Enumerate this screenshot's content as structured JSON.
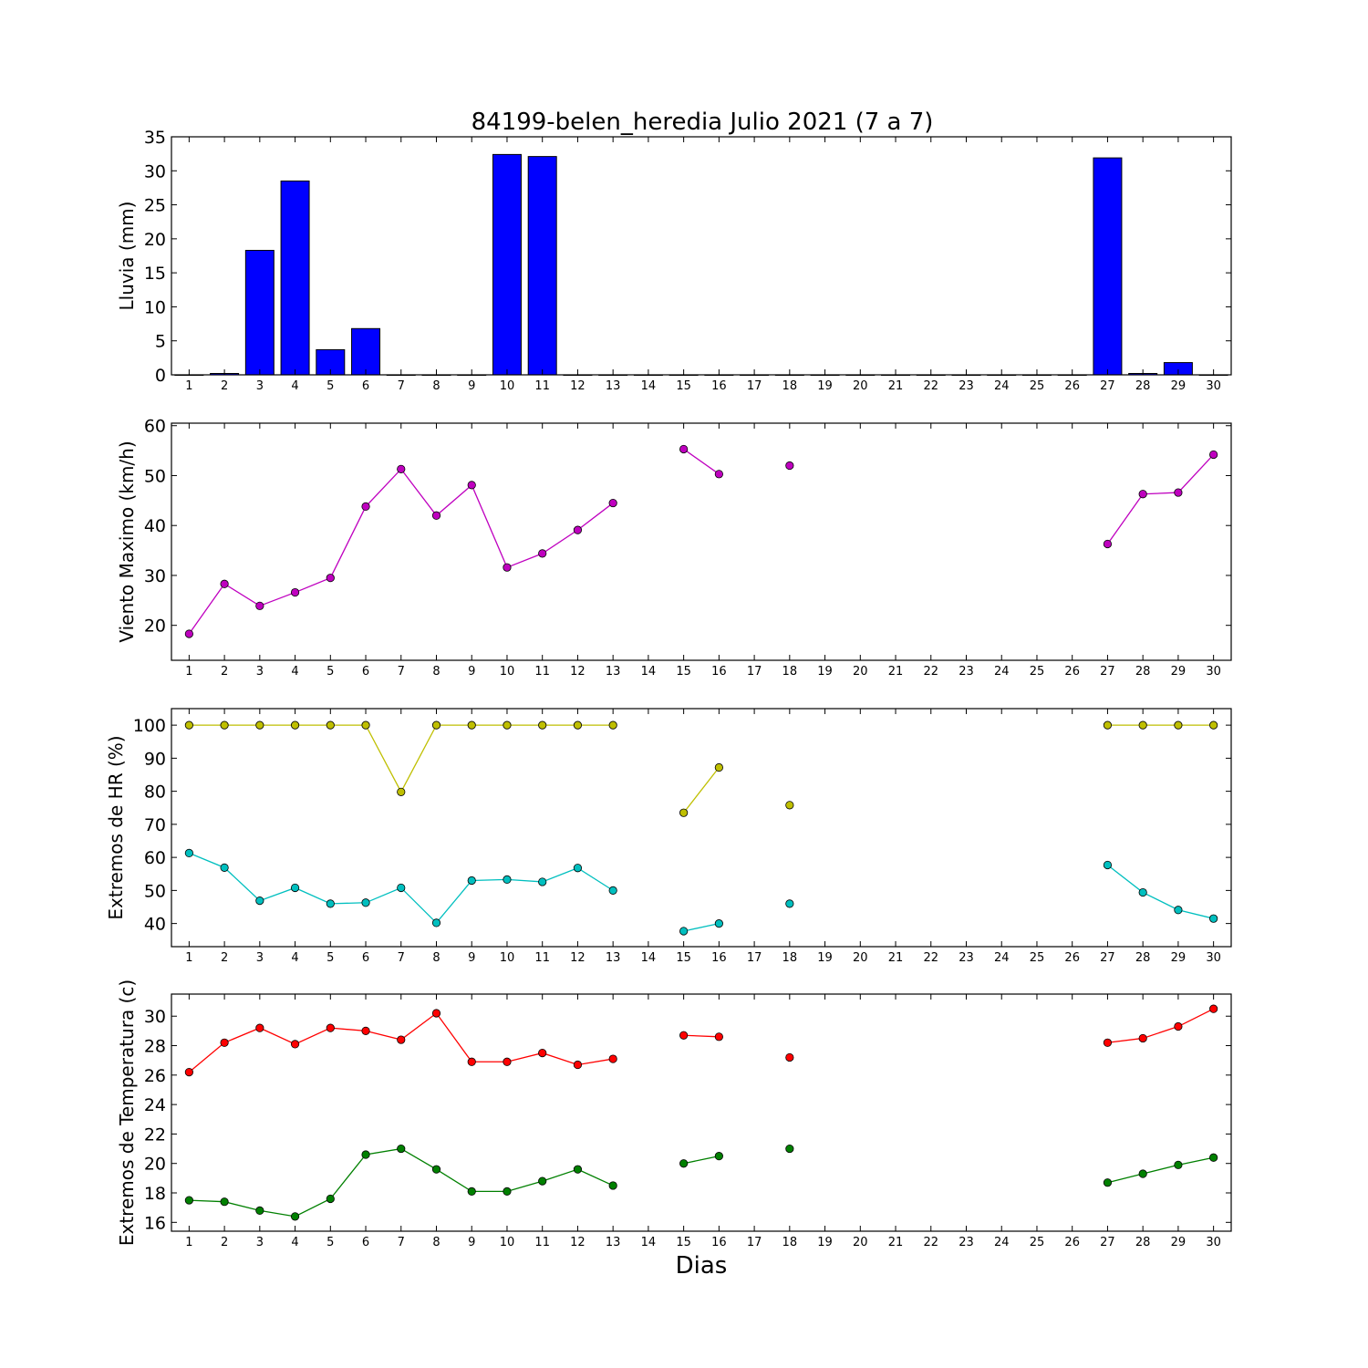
{
  "figure": {
    "title": "84199-belen_heredia Julio 2021  (7 a 7)",
    "xlabel": "Dias"
  },
  "chart_data": [
    {
      "type": "bar",
      "ylabel": "Lluvia (mm)",
      "x": [
        1,
        2,
        3,
        4,
        5,
        6,
        7,
        8,
        9,
        10,
        11,
        12,
        13,
        14,
        15,
        16,
        17,
        18,
        19,
        20,
        21,
        22,
        23,
        24,
        25,
        26,
        27,
        28,
        29,
        30
      ],
      "xlim": [
        0.5,
        30.5
      ],
      "ylim": [
        0,
        35
      ],
      "yticks": [
        0,
        5,
        10,
        15,
        20,
        25,
        30,
        35
      ],
      "series": [
        {
          "color": "#0000ff",
          "values": [
            0,
            0.2,
            18.3,
            28.5,
            3.7,
            6.8,
            0,
            0,
            0,
            32.4,
            32.1,
            0,
            0,
            0,
            0,
            0,
            0,
            0,
            0,
            0,
            0,
            0,
            0,
            0,
            0,
            0,
            31.9,
            0.2,
            1.8,
            0
          ]
        }
      ]
    },
    {
      "type": "line",
      "ylabel": "Viento Maximo (km/h)",
      "x": [
        1,
        2,
        3,
        4,
        5,
        6,
        7,
        8,
        9,
        10,
        11,
        12,
        13,
        14,
        15,
        16,
        17,
        18,
        19,
        20,
        21,
        22,
        23,
        24,
        25,
        26,
        27,
        28,
        29,
        30
      ],
      "xlim": [
        0.5,
        30.5
      ],
      "ylim": [
        13,
        60.5
      ],
      "yticks": [
        20,
        30,
        40,
        50,
        60
      ],
      "series": [
        {
          "color": "#bf00bf",
          "values": [
            18.3,
            28.3,
            23.9,
            26.6,
            29.5,
            43.8,
            51.3,
            42.0,
            48.1,
            31.6,
            34.4,
            39.1,
            44.5,
            null,
            55.3,
            50.3,
            null,
            52.0,
            null,
            null,
            null,
            null,
            null,
            null,
            null,
            null,
            36.3,
            46.3,
            46.6,
            54.2
          ]
        }
      ]
    },
    {
      "type": "line",
      "ylabel": "Extremos de HR (%)",
      "x": [
        1,
        2,
        3,
        4,
        5,
        6,
        7,
        8,
        9,
        10,
        11,
        12,
        13,
        14,
        15,
        16,
        17,
        18,
        19,
        20,
        21,
        22,
        23,
        24,
        25,
        26,
        27,
        28,
        29,
        30
      ],
      "xlim": [
        0.5,
        30.5
      ],
      "ylim": [
        33,
        105
      ],
      "yticks": [
        40,
        50,
        60,
        70,
        80,
        90,
        100
      ],
      "series": [
        {
          "color": "#bfbf00",
          "values": [
            100,
            100,
            100,
            100,
            100,
            100,
            79.8,
            100,
            100,
            100,
            100,
            100,
            100,
            null,
            73.5,
            87.2,
            null,
            75.8,
            null,
            null,
            null,
            null,
            null,
            null,
            null,
            null,
            100,
            100,
            100,
            100
          ]
        },
        {
          "color": "#00bfbf",
          "values": [
            61.3,
            56.9,
            46.9,
            50.8,
            46.0,
            46.3,
            50.8,
            40.2,
            53.0,
            53.3,
            52.6,
            56.8,
            50.0,
            null,
            37.7,
            40.0,
            null,
            46.0,
            null,
            null,
            null,
            null,
            null,
            null,
            null,
            null,
            57.7,
            49.4,
            44.1,
            41.5
          ]
        }
      ]
    },
    {
      "type": "line",
      "ylabel": "Extremos de Temperatura (c)",
      "x": [
        1,
        2,
        3,
        4,
        5,
        6,
        7,
        8,
        9,
        10,
        11,
        12,
        13,
        14,
        15,
        16,
        17,
        18,
        19,
        20,
        21,
        22,
        23,
        24,
        25,
        26,
        27,
        28,
        29,
        30
      ],
      "xlim": [
        0.5,
        30.5
      ],
      "ylim": [
        15.4,
        31.5
      ],
      "yticks": [
        16,
        18,
        20,
        22,
        24,
        26,
        28,
        30
      ],
      "series": [
        {
          "color": "#ff0000",
          "values": [
            26.2,
            28.2,
            29.2,
            28.1,
            29.2,
            29.0,
            28.4,
            30.2,
            26.9,
            26.9,
            27.5,
            26.7,
            27.1,
            null,
            28.7,
            28.6,
            null,
            27.2,
            null,
            null,
            null,
            null,
            null,
            null,
            null,
            null,
            28.2,
            28.5,
            29.3,
            30.5
          ]
        },
        {
          "color": "#008000",
          "values": [
            17.5,
            17.4,
            16.8,
            16.4,
            17.6,
            20.6,
            21.0,
            19.6,
            18.1,
            18.1,
            18.8,
            19.6,
            18.5,
            null,
            20.0,
            20.5,
            null,
            21.0,
            null,
            null,
            null,
            null,
            null,
            null,
            null,
            null,
            18.7,
            19.3,
            19.9,
            20.4
          ]
        }
      ]
    }
  ]
}
